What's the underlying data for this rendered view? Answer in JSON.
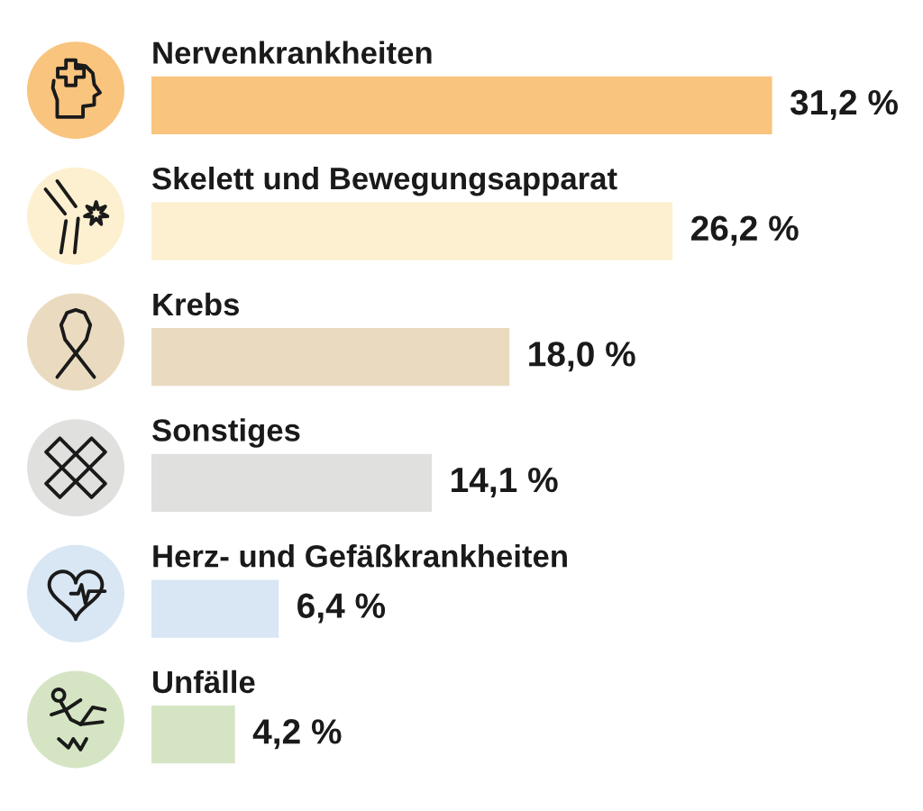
{
  "chart_data": {
    "type": "bar",
    "orientation": "horizontal",
    "categories": [
      "Nervenkrankheiten",
      "Skelett und Bewegungsapparat",
      "Krebs",
      "Sonstiges",
      "Herz- und Gefäßkrankheiten",
      "Unfälle"
    ],
    "values": [
      31.2,
      26.2,
      18.0,
      14.1,
      6.4,
      4.2
    ],
    "colors": [
      "#f9c47e",
      "#fdf0d0",
      "#eadbc0",
      "#e0e0df",
      "#d9e6f3",
      "#d5e5c4"
    ],
    "value_labels": [
      "31,2 %",
      "26,2 %",
      "18,0 %",
      "14,1 %",
      "6,4 %",
      "4,2 %"
    ],
    "tick_labels": "y"
  }
}
